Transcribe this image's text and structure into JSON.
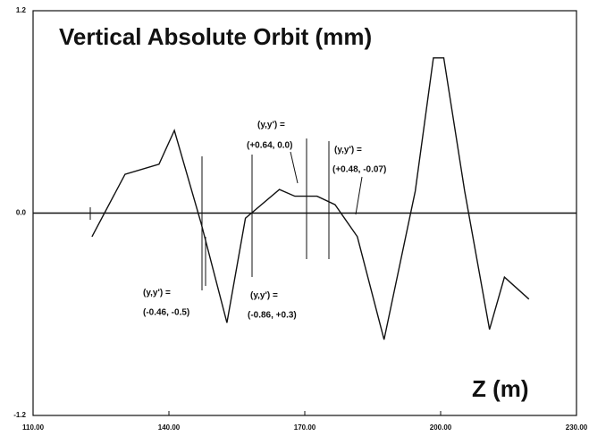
{
  "chart_data": {
    "type": "line",
    "title": "Vertical Absolute Orbit (mm)",
    "x_label": "Z (m)",
    "x": [
      123.0,
      130.3,
      137.8,
      141.2,
      147.1,
      152.8,
      156.9,
      164.4,
      167.8,
      172.7,
      176.7,
      181.6,
      187.5,
      194.4,
      198.4,
      200.7,
      205.3,
      210.8,
      214.1,
      219.5
    ],
    "values": [
      -0.14,
      0.23,
      0.29,
      0.49,
      -0.06,
      -0.65,
      -0.03,
      0.14,
      0.1,
      0.1,
      0.05,
      -0.14,
      -0.75,
      0.13,
      0.92,
      0.92,
      0.13,
      -0.69,
      -0.38,
      -0.51
    ],
    "color": "#111111",
    "xlim": [
      110,
      230
    ],
    "ylim": [
      -1.2,
      1.2
    ],
    "xticks": [
      {
        "value": 110,
        "label": "110.00"
      },
      {
        "value": 140,
        "label": "140.00"
      },
      {
        "value": 170,
        "label": "170.00"
      },
      {
        "value": 200,
        "label": "200.00"
      },
      {
        "value": 230,
        "label": "230.00"
      }
    ],
    "yticks": [
      -1.2,
      {
        "value": 0,
        "label": "0.0"
      },
      1.2
    ],
    "grid": false,
    "annotations": [
      {
        "lines": [
          "(y,y') =",
          "(+0.64, 0.0)"
        ]
      },
      {
        "lines": [
          "(y,y') =",
          "(+0.48, -0.07)"
        ]
      },
      {
        "lines": [
          "(y,y') =",
          "(-0.46, -0.5)"
        ]
      },
      {
        "lines": [
          "(y,y') =",
          "(-0.86, +0.3)"
        ]
      }
    ]
  }
}
